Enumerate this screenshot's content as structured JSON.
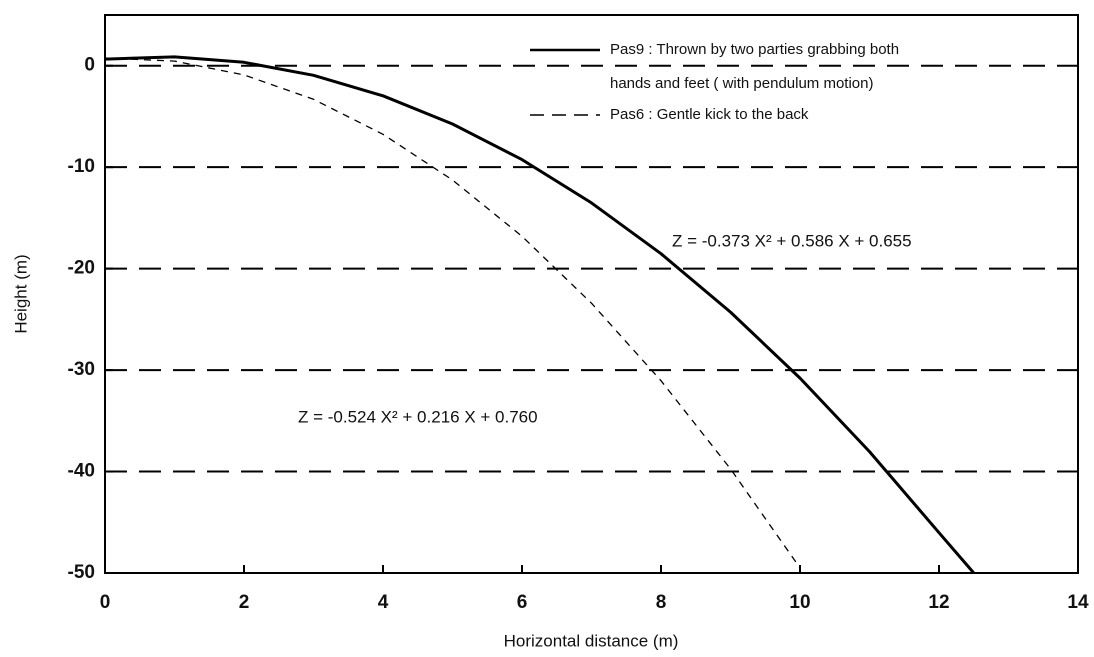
{
  "chart_data": {
    "type": "line",
    "xlabel": "Horizontal distance (m)",
    "ylabel": "Height (m)",
    "xlim": [
      0,
      14
    ],
    "xticks": [
      0,
      2,
      4,
      6,
      8,
      10,
      12,
      14
    ],
    "ylim": [
      -50,
      5
    ],
    "yticks": [
      0,
      -10,
      -20,
      -30,
      -40,
      -50
    ],
    "grid": true,
    "legend": "upper right",
    "series": [
      {
        "name": "Pas9 : Thrown by two parties grabbing both hands and feet ( with pendulum motion)",
        "color": "#000000",
        "style": "solid",
        "x": [
          0,
          1,
          2,
          3,
          4,
          5,
          6,
          7,
          8,
          9,
          10,
          11,
          12,
          12.5
        ],
        "values": [
          0.655,
          0.868,
          0.335,
          -0.944,
          -2.969,
          -5.74,
          -9.257,
          -13.52,
          -18.529,
          -24.284,
          -30.785,
          -38.032,
          -46.025,
          -50
        ]
      },
      {
        "name": "Pas6 : Gentle kick to the back",
        "color": "#000000",
        "style": "dashed",
        "x": [
          0,
          1,
          2,
          3,
          4,
          5,
          6,
          7,
          8,
          9,
          10
        ],
        "values": [
          0.76,
          0.452,
          -0.904,
          -3.308,
          -6.76,
          -11.26,
          -16.808,
          -23.404,
          -31.048,
          -39.74,
          -49.5
        ]
      }
    ],
    "annotations": [
      "Z = -0.373 X² + 0.586 X + 0.655",
      "Z = -0.524 X² + 0.216 X + 0.760"
    ]
  }
}
